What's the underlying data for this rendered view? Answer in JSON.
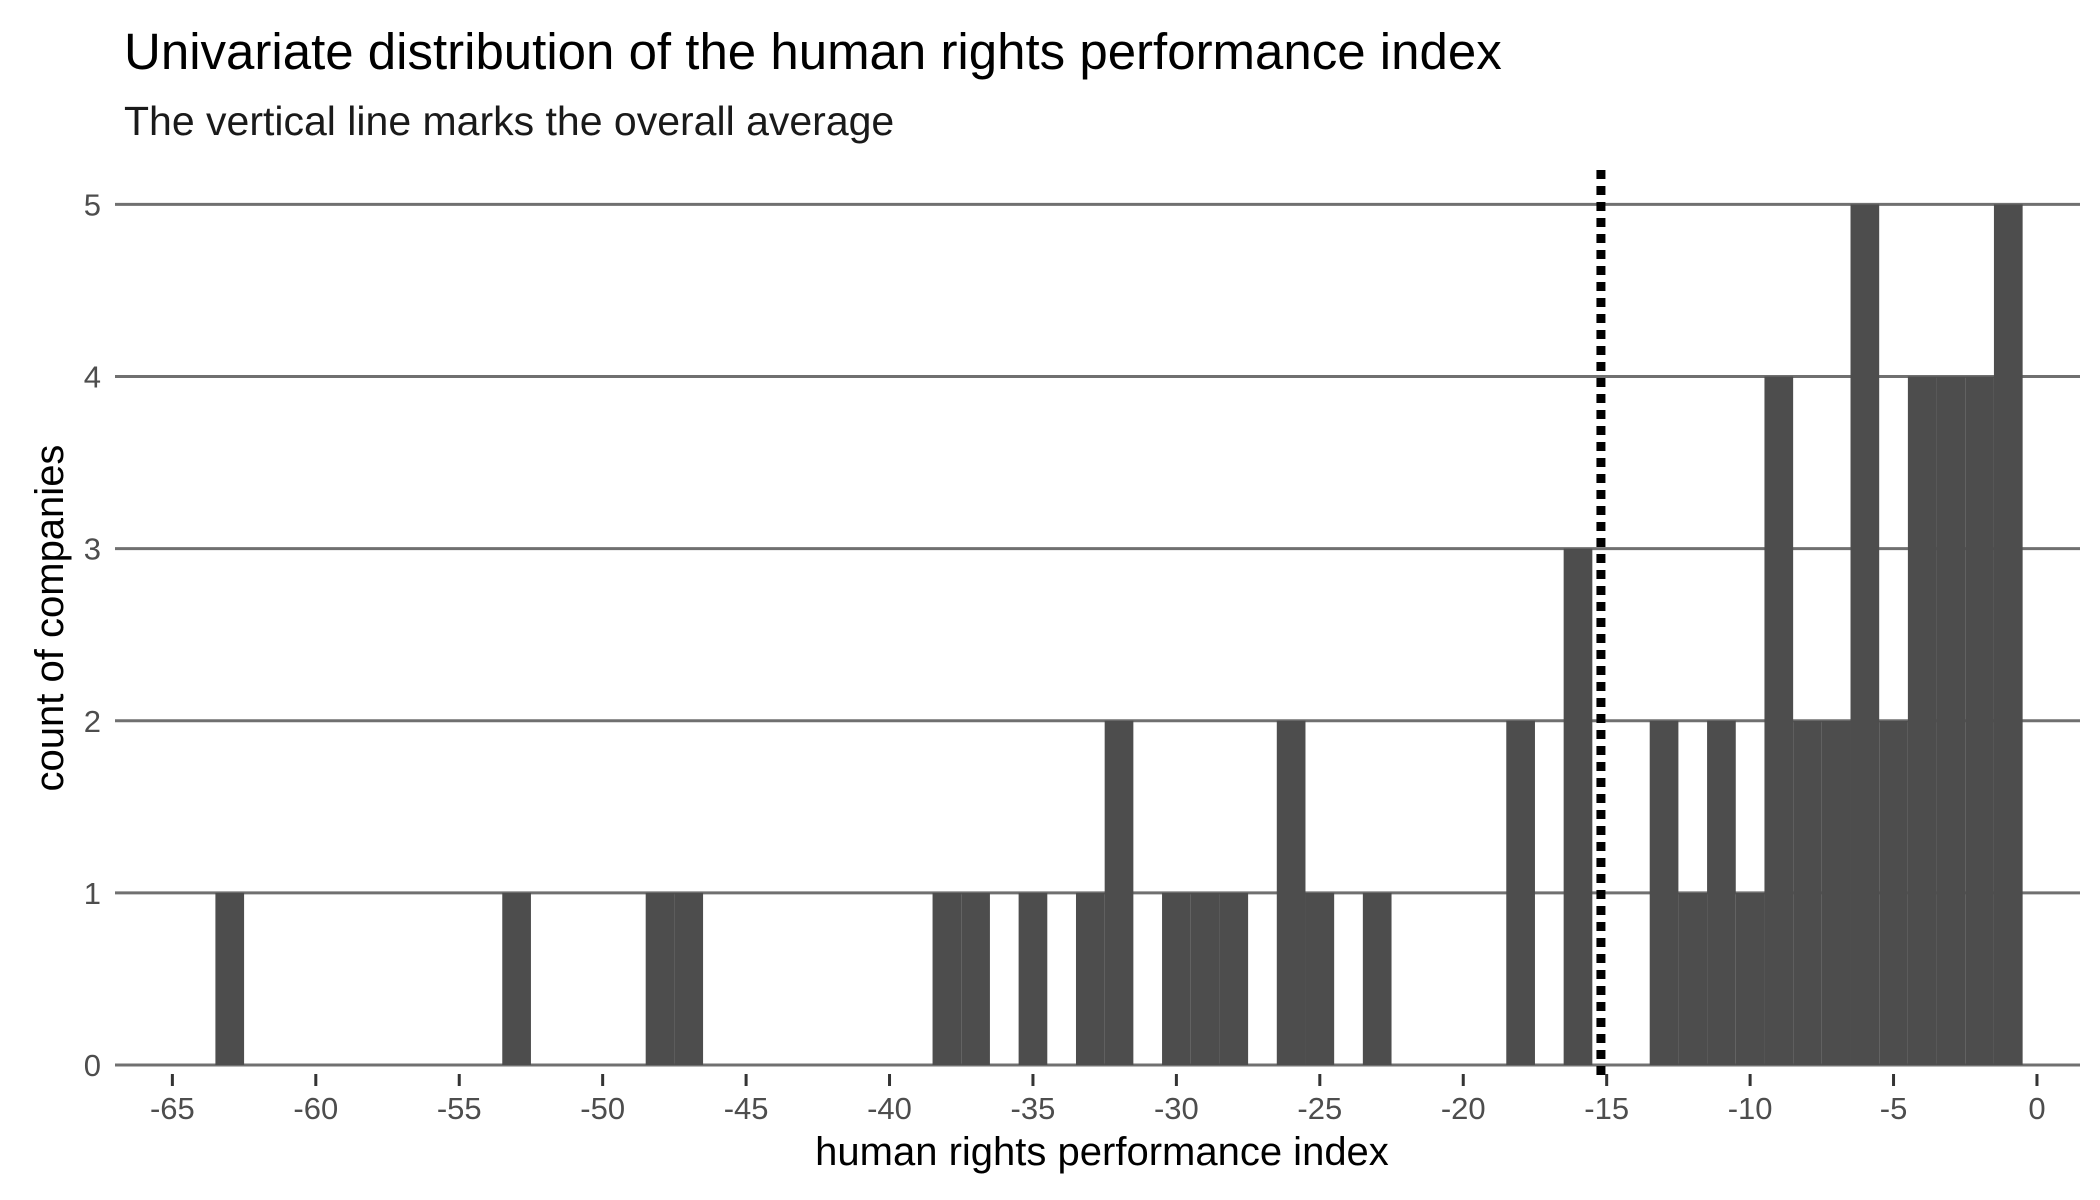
{
  "chart_data": {
    "type": "bar",
    "title": "Univariate distribution of the human rights performance index",
    "subtitle": "The vertical line marks the overall average",
    "xlabel": "human rights performance index",
    "ylabel": "count of companies",
    "xlim": [
      -67,
      1.5
    ],
    "ylim": [
      0,
      5.2
    ],
    "x_ticks": [
      -65,
      -60,
      -55,
      -50,
      -45,
      -40,
      -35,
      -30,
      -25,
      -20,
      -15,
      -10,
      -5,
      0
    ],
    "x_tick_labels": [
      "-65",
      "-60",
      "-55",
      "-50",
      "-45",
      "-40",
      "-35",
      "-30",
      "-25",
      "-20",
      "-15",
      "-10",
      "-5",
      "0"
    ],
    "y_ticks": [
      0,
      1,
      2,
      3,
      4,
      5
    ],
    "y_tick_labels": [
      "0",
      "1",
      "2",
      "3",
      "4",
      "5"
    ],
    "bin_width": 1,
    "bins": [
      {
        "x": -63,
        "count": 1
      },
      {
        "x": -53,
        "count": 1
      },
      {
        "x": -48,
        "count": 1
      },
      {
        "x": -47,
        "count": 1
      },
      {
        "x": -38,
        "count": 1
      },
      {
        "x": -37,
        "count": 1
      },
      {
        "x": -35,
        "count": 1
      },
      {
        "x": -33,
        "count": 1
      },
      {
        "x": -32,
        "count": 2
      },
      {
        "x": -30,
        "count": 1
      },
      {
        "x": -29,
        "count": 1
      },
      {
        "x": -28,
        "count": 1
      },
      {
        "x": -26,
        "count": 2
      },
      {
        "x": -25,
        "count": 1
      },
      {
        "x": -23,
        "count": 1
      },
      {
        "x": -18,
        "count": 2
      },
      {
        "x": -16,
        "count": 3
      },
      {
        "x": -13,
        "count": 2
      },
      {
        "x": -12,
        "count": 1
      },
      {
        "x": -11,
        "count": 2
      },
      {
        "x": -10,
        "count": 1
      },
      {
        "x": -9,
        "count": 4
      },
      {
        "x": -8,
        "count": 2
      },
      {
        "x": -7,
        "count": 2
      },
      {
        "x": -6,
        "count": 5
      },
      {
        "x": -5,
        "count": 2
      },
      {
        "x": -4,
        "count": 4
      },
      {
        "x": -3,
        "count": 4
      },
      {
        "x": -2,
        "count": 4
      },
      {
        "x": -1,
        "count": 5
      }
    ],
    "average_line": {
      "x": -15.2,
      "style": "dotted"
    },
    "bar_color": "#4d4d4d",
    "grid": "horizontal major lines"
  }
}
